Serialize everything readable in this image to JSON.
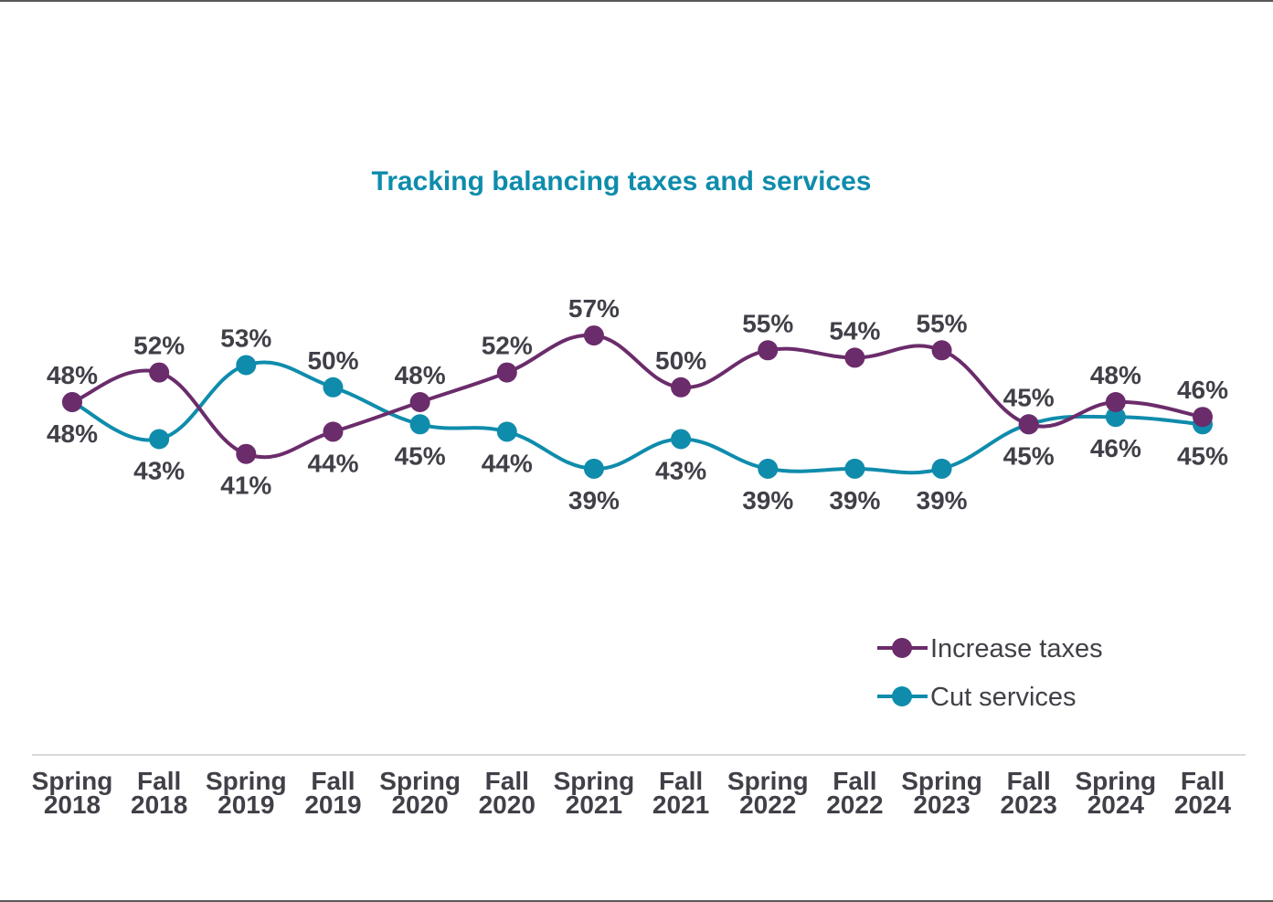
{
  "chart_data": {
    "type": "line",
    "title": "Tracking balancing taxes and services",
    "xlabel": "",
    "ylabel": "",
    "categories": [
      [
        "Spring",
        "2018"
      ],
      [
        "Fall",
        "2018"
      ],
      [
        "Spring",
        "2019"
      ],
      [
        "Fall",
        "2019"
      ],
      [
        "Spring",
        "2020"
      ],
      [
        "Fall",
        "2020"
      ],
      [
        "Spring",
        "2021"
      ],
      [
        "Fall",
        "2021"
      ],
      [
        "Spring",
        "2022"
      ],
      [
        "Fall",
        "2022"
      ],
      [
        "Spring",
        "2023"
      ],
      [
        "Fall",
        "2023"
      ],
      [
        "Spring",
        "2024"
      ],
      [
        "Fall",
        "2024"
      ]
    ],
    "series": [
      {
        "name": "Increase taxes",
        "color": "#6B2C6B",
        "values": [
          48,
          52,
          41,
          44,
          48,
          52,
          57,
          50,
          55,
          54,
          55,
          45,
          48,
          46
        ],
        "label_position": [
          "above",
          "above",
          "below",
          "below",
          "above",
          "above",
          "above",
          "above",
          "above",
          "above",
          "above",
          "above",
          "above",
          "above"
        ]
      },
      {
        "name": "Cut services",
        "color": "#0F8CAC",
        "values": [
          48,
          43,
          53,
          50,
          45,
          44,
          39,
          43,
          39,
          39,
          39,
          45,
          46,
          45
        ],
        "label_position": [
          "below",
          "below",
          "above",
          "above",
          "below",
          "below",
          "below",
          "below",
          "below",
          "below",
          "below",
          "below",
          "below",
          "below"
        ]
      }
    ],
    "value_suffix": "%",
    "ylim": [
      30,
      65
    ],
    "smooth": true,
    "grid": false,
    "legend_position": "bottom-right",
    "title_color": "#0F8CAC"
  }
}
